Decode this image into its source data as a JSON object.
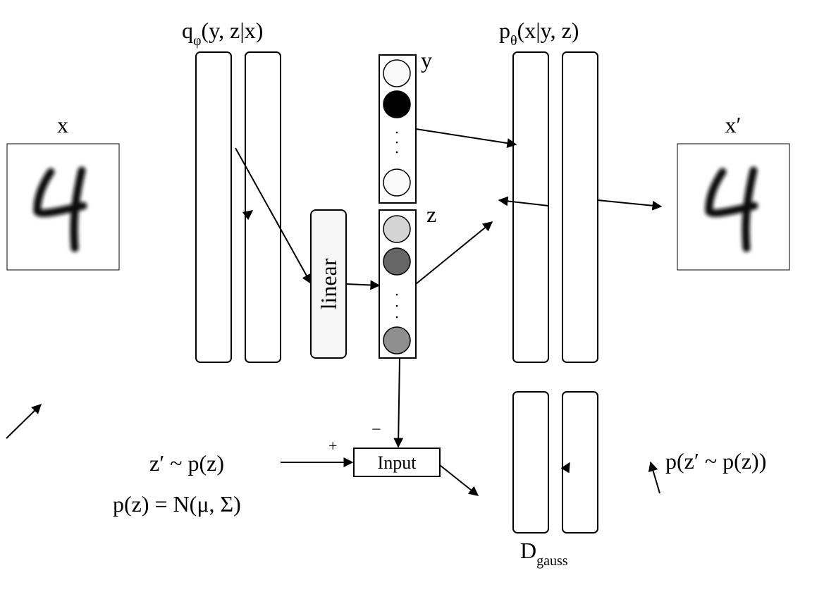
{
  "labels": {
    "x": "x",
    "x_prime": "x′",
    "encoder_q": "q",
    "encoder_sub": "φ",
    "encoder_args": "(y, z|x)",
    "decoder_p": "p",
    "decoder_sub": "θ",
    "decoder_args": "(x|y, z)",
    "y": "y",
    "z": "z",
    "linear": "linear",
    "input": "Input",
    "minus": "−",
    "plus": "+",
    "z_prior": "z′ ~ p(z)",
    "pz_dist": "p(z) = N(μ, Σ)",
    "disc_d": "D",
    "disc_sub": "gauss",
    "disc_prob": "p(z′ ~ p(z))"
  },
  "y_units": [
    {
      "fill": "#fafafa"
    },
    {
      "fill": "#000000"
    },
    {
      "fill": "#fafafa"
    }
  ],
  "z_units": [
    {
      "fill": "#d4d4d4"
    },
    {
      "fill": "#666666"
    },
    {
      "fill": "#8f8f8f"
    }
  ],
  "colors": {
    "stroke": "#000000",
    "background": "#ffffff",
    "linear_fill": "#f7f7f7"
  },
  "digit_images": [
    "handwritten-4",
    "handwritten-4"
  ]
}
